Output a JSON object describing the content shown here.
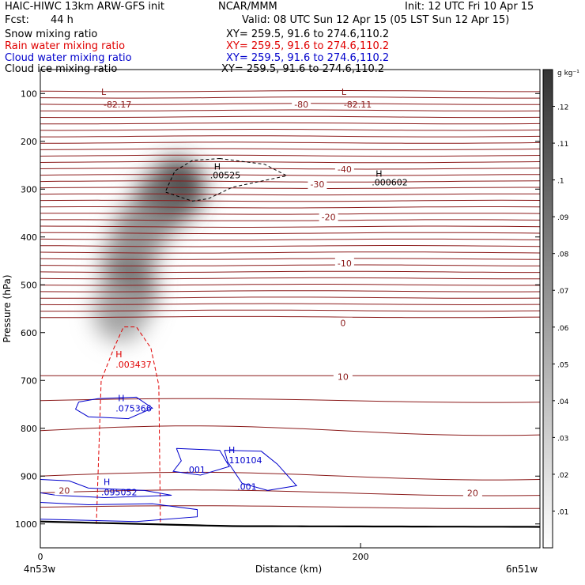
{
  "header": {
    "model": "HAIC-HIWC 13km ARW-GFS init",
    "org": "NCAR/MMM",
    "init": "Init: 12 UTC Fri 10 Apr 15",
    "fcst_label": "Fcst:",
    "fcst_value": "44 h",
    "valid": "Valid: 08 UTC Sun 12 Apr 15 (05 LST Sun 12 Apr 15)"
  },
  "fields": [
    {
      "name": "Snow mixing ratio",
      "xy": "XY= 259.5, 91.6 to 274.6,110.2",
      "color": "#000000"
    },
    {
      "name": "Rain water mixing ratio",
      "xy": "XY= 259.5, 91.6 to 274.6,110.2",
      "color": "#e00000"
    },
    {
      "name": "Cloud water mixing ratio",
      "xy": "XY= 259.5, 91.6 to 274.6,110.2",
      "color": "#0000cc"
    },
    {
      "name": "Cloud ice mixing ratio",
      "xy": "XY= 259.5, 91.6 to 274.6,110.2",
      "color": "#000000"
    }
  ],
  "colors": {
    "temperature": "#8b1a1a",
    "rain": "#e00000",
    "cloud_water": "#0000cc",
    "ice": "#000000",
    "terrain": "#000000"
  },
  "chart_data": {
    "type": "cross-section",
    "xlabel": "Distance (km)",
    "ylabel": "Pressure (hPa)",
    "x_ticks": [
      0,
      200
    ],
    "x_range": [
      0,
      312
    ],
    "y_ticks": [
      100,
      200,
      300,
      400,
      500,
      600,
      700,
      800,
      900,
      1000
    ],
    "y_range": [
      50,
      1050
    ],
    "endpoints": {
      "left": "4n53w",
      "right": "6n51w"
    },
    "colorbar": {
      "unit": "g kg⁻¹",
      "ticks": [
        ".01",
        ".02",
        ".03",
        ".04",
        ".05",
        ".06",
        ".07",
        ".08",
        ".09",
        ".1",
        ".11",
        ".12"
      ],
      "tick_values": [
        0.01,
        0.02,
        0.03,
        0.04,
        0.05,
        0.06,
        0.07,
        0.08,
        0.09,
        0.1,
        0.11,
        0.12
      ],
      "range": [
        0.0,
        0.13
      ]
    },
    "snow_blobs": [
      {
        "x": 85,
        "p": 300,
        "peak": 0.13
      },
      {
        "x": 75,
        "p": 330,
        "peak": 0.1
      },
      {
        "x": 62,
        "p": 390,
        "peak": 0.07
      },
      {
        "x": 55,
        "p": 455,
        "peak": 0.07
      },
      {
        "x": 55,
        "p": 520,
        "peak": 0.1
      },
      {
        "x": 50,
        "p": 555,
        "peak": 0.06
      }
    ],
    "temperature_labels": [
      {
        "text": "-80",
        "x": 163,
        "p": 123
      },
      {
        "text": "-40",
        "x": 190,
        "p": 258
      },
      {
        "text": "-30",
        "x": 173,
        "p": 290
      },
      {
        "text": "-20",
        "x": 180,
        "p": 358
      },
      {
        "text": "-10",
        "x": 190,
        "p": 455
      },
      {
        "text": "0",
        "x": 189,
        "p": 580
      },
      {
        "text": "10",
        "x": 189,
        "p": 692
      },
      {
        "text": "20",
        "x": 270,
        "p": 935
      },
      {
        "text": "20",
        "x": 15,
        "p": 930
      }
    ],
    "temperature_lows": [
      {
        "mark": "L",
        "value": "-82.17",
        "x": 38,
        "p": 108
      },
      {
        "mark": "L",
        "value": "-82.11",
        "x": 188,
        "p": 108
      }
    ],
    "ice_max": [
      {
        "mark": "H",
        "value": ".00525",
        "x": 106,
        "p": 272
      },
      {
        "mark": "H",
        "value": ".000602",
        "x": 207,
        "p": 287
      }
    ],
    "rain_max": [
      {
        "mark": "H",
        "value": ".003437",
        "x": 48,
        "p": 668
      }
    ],
    "cloud_water_max": [
      {
        "mark": "H",
        "value": ".075366",
        "x": 48,
        "p": 760
      },
      {
        "mark": "H",
        "value": ".110104",
        "x": 117,
        "p": 868
      },
      {
        "mark": "H",
        "value": ".095052",
        "x": 39,
        "p": 935
      }
    ],
    "cloud_water_labels": [
      {
        "text": ".001",
        "x": 91,
        "p": 886
      },
      {
        "text": ".001",
        "x": 123,
        "p": 922
      }
    ]
  }
}
